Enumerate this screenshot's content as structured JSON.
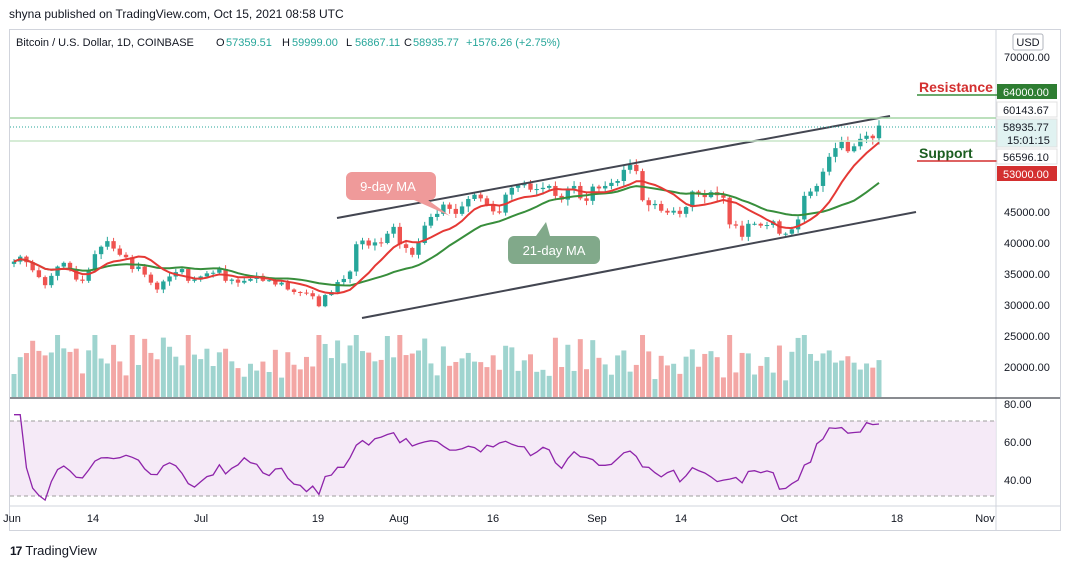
{
  "caption": "shyna published on TradingView.com, Oct 15, 2021 08:58 UTC",
  "footer": {
    "logo_text": "17",
    "brand": "TradingView"
  },
  "chart_data": {
    "type": "candlestick",
    "title": "Bitcoin / U.S. Dollar, 1D, COINBASE",
    "ohlc": {
      "o_label": "O",
      "o": "57359.51",
      "h_label": "H",
      "h": "59999.00",
      "l_label": "L",
      "l": "56867.11",
      "c_label": "C",
      "c": "58935.77",
      "change": "+1576.26 (+2.75%)"
    },
    "currency": "USD",
    "y_ticks": [
      "70000.00",
      "45000.00",
      "40000.00",
      "35000.00",
      "30000.00",
      "25000.00",
      "20000.00"
    ],
    "x_ticks": [
      "Jun",
      "14",
      "Jul",
      "19",
      "Aug",
      "16",
      "Sep",
      "14",
      "Oct",
      "18",
      "Nov"
    ],
    "price_tags": [
      {
        "label": "64000.00",
        "value": 64000,
        "color": "#2e7d32"
      },
      {
        "label": "60143.67",
        "value": 60143.67,
        "color": "#ffffff"
      },
      {
        "label": "58935.77",
        "value": 58935.77,
        "color": "#e0f2f1",
        "sub": "15:01:15"
      },
      {
        "label": "56596.10",
        "value": 56596.1,
        "color": "#ffffff"
      },
      {
        "label": "53000.00",
        "value": 53000,
        "color": "#d32f2f"
      }
    ],
    "annotations": {
      "resistance": "Resistance",
      "support": "Support",
      "ma9": "9-day MA",
      "ma21": "21-day MA"
    },
    "rsi_ticks": [
      "80.00",
      "60.00",
      "40.00"
    ],
    "rsi_band": [
      30,
      70
    ],
    "price_range": [
      20000,
      73000
    ],
    "closes": [
      37000,
      37800,
      36900,
      35600,
      34500,
      33200,
      34700,
      36200,
      36800,
      35800,
      34100,
      33900,
      35600,
      38200,
      39400,
      40300,
      39100,
      38100,
      37700,
      35800,
      36200,
      34900,
      33600,
      32500,
      33800,
      34600,
      35300,
      35800,
      33900,
      34100,
      34600,
      35100,
      35200,
      35800,
      33900,
      34100,
      33600,
      33900,
      34200,
      34700,
      33900,
      34000,
      33300,
      33600,
      32500,
      32100,
      32000,
      31900,
      31400,
      29800,
      31600,
      32100,
      33700,
      34200,
      35400,
      39800,
      40400,
      39600,
      40100,
      40000,
      41500,
      42600,
      39800,
      39200,
      38100,
      40000,
      42800,
      44200,
      44700,
      46200,
      45500,
      44700,
      45900,
      47100,
      47800,
      47200,
      46100,
      45100,
      44900,
      47800,
      48900,
      49300,
      49600,
      48600,
      48700,
      48900,
      49200,
      47600,
      47000,
      48800,
      49200,
      47200,
      46800,
      49100,
      48800,
      49200,
      49700,
      50000,
      51800,
      52600,
      51600,
      46900,
      46100,
      46300,
      45200,
      44900,
      45200,
      44700,
      45800,
      48300,
      47900,
      47400,
      48200,
      47700,
      47300,
      43000,
      42800,
      41000,
      43100,
      43100,
      42800,
      42900,
      43500,
      41500,
      41500,
      42200,
      43800,
      47600,
      48300,
      49200,
      51500,
      53900,
      55300,
      56300,
      54800,
      55600,
      56800,
      57300,
      56900,
      58935
    ]
  }
}
